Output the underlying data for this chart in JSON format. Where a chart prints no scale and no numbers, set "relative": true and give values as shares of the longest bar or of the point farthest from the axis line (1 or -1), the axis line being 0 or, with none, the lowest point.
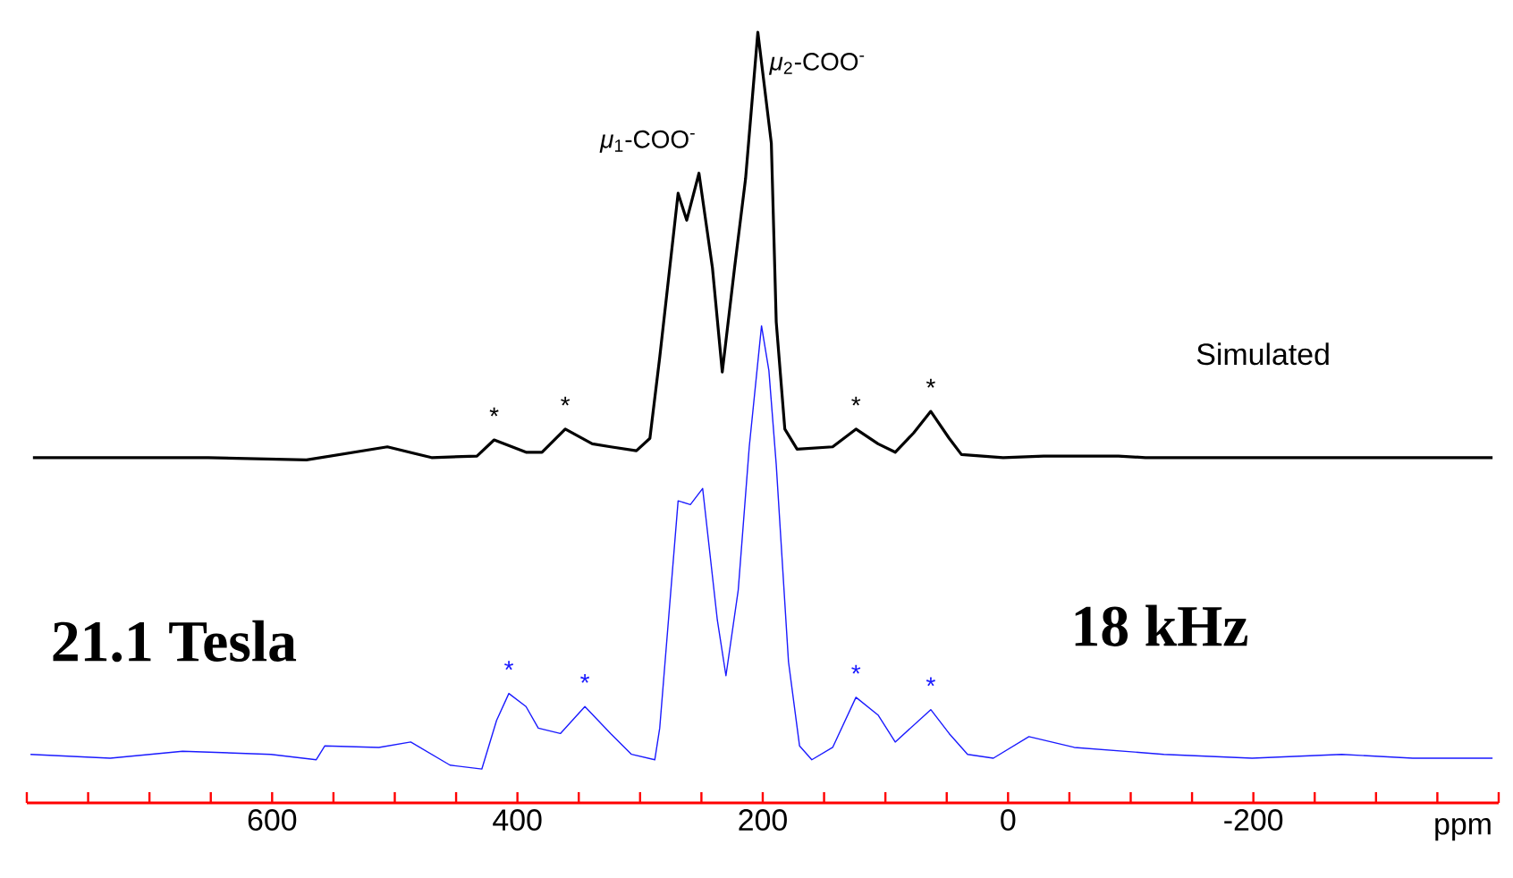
{
  "chart_data": {
    "type": "line",
    "relative": true,
    "xlabel": "ppm",
    "xlim": [
      800,
      -400
    ],
    "xticks": [
      {
        "value": 800,
        "label": null
      },
      {
        "value": 750,
        "label": null
      },
      {
        "value": 700,
        "label": null
      },
      {
        "value": 650,
        "label": null
      },
      600,
      {
        "value": 550,
        "label": null
      },
      {
        "value": 500,
        "label": null
      },
      {
        "value": 450,
        "label": null
      },
      400,
      {
        "value": 350,
        "label": null
      },
      {
        "value": 300,
        "label": null
      },
      {
        "value": 250,
        "label": null
      },
      200,
      {
        "value": 150,
        "label": null
      },
      {
        "value": 100,
        "label": null
      },
      {
        "value": 50,
        "label": null
      },
      0,
      {
        "value": -50,
        "label": null
      },
      {
        "value": -100,
        "label": null
      },
      {
        "value": -150,
        "label": null
      },
      -200,
      {
        "value": -250,
        "label": null
      },
      {
        "value": -300,
        "label": null
      },
      {
        "value": -350,
        "label": null
      },
      {
        "value": -400,
        "label": null
      }
    ],
    "series": [
      {
        "name": "Simulated",
        "color": "#000000",
        "x": [
          795,
          652,
          572,
          506,
          470,
          433,
          419,
          393,
          380,
          361,
          339,
          324,
          303,
          292,
          284,
          269,
          262,
          252,
          241,
          233,
          223,
          214,
          204,
          193,
          189,
          182,
          172,
          143,
          124,
          106,
          92,
          77,
          63,
          48,
          38,
          4,
          -29,
          -90,
          -112,
          -395
        ],
        "values": [
          0.448,
          0.448,
          0.445,
          0.462,
          0.448,
          0.45,
          0.471,
          0.455,
          0.455,
          0.485,
          0.466,
          0.462,
          0.457,
          0.473,
          0.578,
          0.791,
          0.756,
          0.817,
          0.694,
          0.559,
          0.694,
          0.81,
          1,
          0.856,
          0.624,
          0.485,
          0.459,
          0.462,
          0.485,
          0.466,
          0.455,
          0.48,
          0.508,
          0.473,
          0.452,
          0.448,
          0.45,
          0.45,
          0.448,
          0.448
        ]
      },
      {
        "color": "#1a1aff",
        "x": [
          797,
          732,
          673,
          601,
          564,
          557,
          513,
          487,
          455,
          429,
          417,
          407,
          393,
          383,
          365,
          345,
          324,
          307,
          288,
          284,
          269,
          259,
          249,
          237,
          230,
          220,
          211,
          201,
          195,
          189,
          179,
          170,
          160,
          143,
          124,
          106,
          92,
          63,
          48,
          33,
          12,
          -17,
          -54,
          -127,
          -199,
          -272,
          -330,
          -395
        ],
        "values": [
          0.063,
          0.058,
          0.067,
          0.063,
          0.056,
          0.074,
          0.072,
          0.079,
          0.049,
          0.044,
          0.107,
          0.142,
          0.125,
          0.097,
          0.09,
          0.125,
          0.09,
          0.063,
          0.056,
          0.097,
          0.392,
          0.387,
          0.408,
          0.237,
          0.165,
          0.276,
          0.462,
          0.619,
          0.561,
          0.439,
          0.183,
          0.074,
          0.056,
          0.072,
          0.137,
          0.114,
          0.079,
          0.121,
          0.09,
          0.063,
          0.058,
          0.086,
          0.072,
          0.063,
          0.058,
          0.063,
          0.058,
          0.058
        ]
      }
    ],
    "annotations": [
      {
        "text": "*μ*$_{1}$-COO$^{-}$",
        "x": 252,
        "y": 0.817
      },
      {
        "text": "*μ*$_{2}$-COO$^{-}$",
        "x": 204,
        "y": 1
      },
      {
        "text": "*",
        "x": 419,
        "y": 0.471
      },
      {
        "text": "*",
        "x": 361,
        "y": 0.485
      },
      {
        "text": "*",
        "x": 124,
        "y": 0.485
      },
      {
        "text": "*",
        "x": 63,
        "y": 0.508
      },
      {
        "text": "*",
        "x": 407,
        "y": 0.142
      },
      {
        "text": "*",
        "x": 345,
        "y": 0.125
      },
      {
        "text": "*",
        "x": 124,
        "y": 0.137
      },
      {
        "text": "*",
        "x": 63,
        "y": 0.121
      },
      "21.1 Tesla",
      "18 kHz"
    ]
  }
}
